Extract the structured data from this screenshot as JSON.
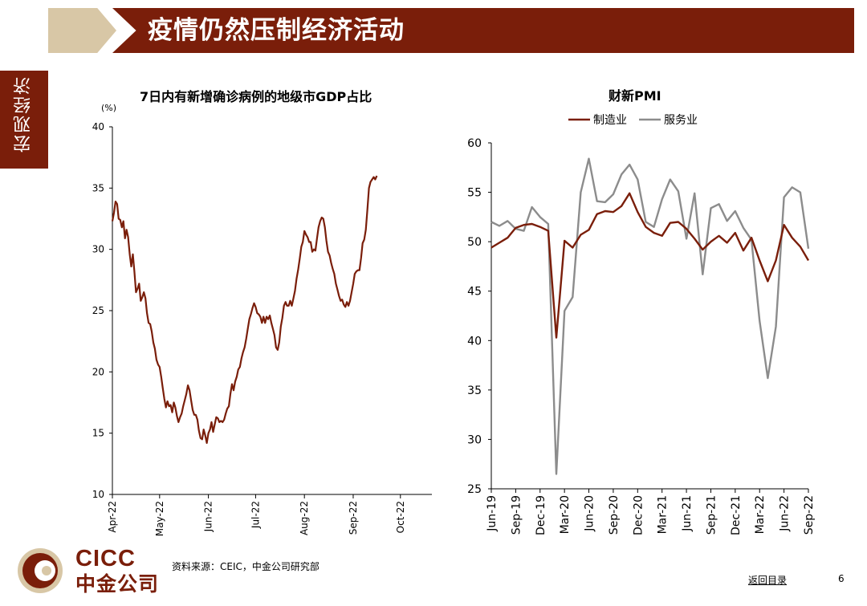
{
  "header": {
    "title": "疫情仍然压制经济活动"
  },
  "side_tab": {
    "label": "宏观经济"
  },
  "footer": {
    "source": "资料来源：CEIC，中金公司研究部",
    "toc_link": "返回目录",
    "page_number": "6",
    "logo_en": "CICC",
    "logo_cn": "中金公司"
  },
  "colors": {
    "brand": "#7a1e0a",
    "accent_tan": "#d8c7a6",
    "line_brown": "#7a1e0a",
    "line_gray": "#8c8c8c"
  },
  "chart_data": [
    {
      "type": "line",
      "title": "7日内有新增确诊病例的地级市GDP占比",
      "ylabel": "(%)",
      "ylim": [
        10,
        40
      ],
      "yticks": [
        "40",
        "35",
        "30",
        "25",
        "20",
        "15",
        "10"
      ],
      "xlim": [
        "2022-04-01",
        "2022-10-21"
      ],
      "xticks": [
        {
          "label": "Apr-22",
          "date": "2022-04-01"
        },
        {
          "label": "May-22",
          "date": "2022-05-01"
        },
        {
          "label": "Jun-22",
          "date": "2022-06-01"
        },
        {
          "label": "Jul-22",
          "date": "2022-07-01"
        },
        {
          "label": "Aug-22",
          "date": "2022-08-01"
        },
        {
          "label": "Sep-22",
          "date": "2022-09-01"
        },
        {
          "label": "Oct-22",
          "date": "2022-10-01"
        }
      ],
      "grid": false,
      "series": [
        {
          "color": "#7a1e0a",
          "points": [
            [
              "2022-04-01",
              32.3
            ],
            [
              "2022-04-02",
              33.0
            ],
            [
              "2022-04-03",
              33.9
            ],
            [
              "2022-04-04",
              33.7
            ],
            [
              "2022-04-05",
              32.5
            ],
            [
              "2022-04-06",
              32.4
            ],
            [
              "2022-04-07",
              31.8
            ],
            [
              "2022-04-08",
              32.3
            ],
            [
              "2022-04-09",
              30.9
            ],
            [
              "2022-04-10",
              31.6
            ],
            [
              "2022-04-11",
              31.0
            ],
            [
              "2022-04-12",
              29.6
            ],
            [
              "2022-04-13",
              28.6
            ],
            [
              "2022-04-14",
              29.6
            ],
            [
              "2022-04-15",
              28.2
            ],
            [
              "2022-04-16",
              26.5
            ],
            [
              "2022-04-17",
              26.8
            ],
            [
              "2022-04-18",
              27.2
            ],
            [
              "2022-04-19",
              25.8
            ],
            [
              "2022-04-20",
              26.1
            ],
            [
              "2022-04-21",
              26.5
            ],
            [
              "2022-04-22",
              26.0
            ],
            [
              "2022-04-23",
              24.8
            ],
            [
              "2022-04-24",
              24.0
            ],
            [
              "2022-04-25",
              23.9
            ],
            [
              "2022-04-26",
              23.3
            ],
            [
              "2022-04-27",
              22.4
            ],
            [
              "2022-04-28",
              21.9
            ],
            [
              "2022-04-29",
              21.0
            ],
            [
              "2022-04-30",
              20.6
            ],
            [
              "2022-05-01",
              20.4
            ],
            [
              "2022-05-02",
              19.6
            ],
            [
              "2022-05-03",
              18.7
            ],
            [
              "2022-05-04",
              17.8
            ],
            [
              "2022-05-05",
              17.1
            ],
            [
              "2022-05-06",
              17.6
            ],
            [
              "2022-05-07",
              17.2
            ],
            [
              "2022-05-08",
              17.3
            ],
            [
              "2022-05-09",
              16.7
            ],
            [
              "2022-05-10",
              17.5
            ],
            [
              "2022-05-11",
              17.1
            ],
            [
              "2022-05-12",
              16.4
            ],
            [
              "2022-05-13",
              15.9
            ],
            [
              "2022-05-14",
              16.3
            ],
            [
              "2022-05-15",
              16.6
            ],
            [
              "2022-05-16",
              17.2
            ],
            [
              "2022-05-17",
              17.7
            ],
            [
              "2022-05-18",
              18.2
            ],
            [
              "2022-05-19",
              18.9
            ],
            [
              "2022-05-20",
              18.5
            ],
            [
              "2022-05-21",
              17.7
            ],
            [
              "2022-05-22",
              16.9
            ],
            [
              "2022-05-23",
              16.5
            ],
            [
              "2022-05-24",
              16.5
            ],
            [
              "2022-05-25",
              16.1
            ],
            [
              "2022-05-26",
              15.2
            ],
            [
              "2022-05-27",
              14.6
            ],
            [
              "2022-05-28",
              14.5
            ],
            [
              "2022-05-29",
              15.3
            ],
            [
              "2022-05-30",
              14.8
            ],
            [
              "2022-05-31",
              14.2
            ],
            [
              "2022-06-01",
              15.0
            ],
            [
              "2022-06-02",
              15.3
            ],
            [
              "2022-06-03",
              15.9
            ],
            [
              "2022-06-04",
              15.1
            ],
            [
              "2022-06-05",
              15.7
            ],
            [
              "2022-06-06",
              16.3
            ],
            [
              "2022-06-07",
              16.2
            ],
            [
              "2022-06-08",
              15.9
            ],
            [
              "2022-06-09",
              16.0
            ],
            [
              "2022-06-10",
              15.9
            ],
            [
              "2022-06-11",
              16.1
            ],
            [
              "2022-06-12",
              16.6
            ],
            [
              "2022-06-13",
              17.0
            ],
            [
              "2022-06-14",
              17.2
            ],
            [
              "2022-06-15",
              18.2
            ],
            [
              "2022-06-16",
              19.0
            ],
            [
              "2022-06-17",
              18.5
            ],
            [
              "2022-06-18",
              19.2
            ],
            [
              "2022-06-19",
              19.6
            ],
            [
              "2022-06-20",
              20.2
            ],
            [
              "2022-06-21",
              20.4
            ],
            [
              "2022-06-22",
              21.1
            ],
            [
              "2022-06-23",
              21.6
            ],
            [
              "2022-06-24",
              22.0
            ],
            [
              "2022-06-25",
              22.7
            ],
            [
              "2022-06-26",
              23.5
            ],
            [
              "2022-06-27",
              24.3
            ],
            [
              "2022-06-28",
              24.7
            ],
            [
              "2022-06-29",
              25.2
            ],
            [
              "2022-06-30",
              25.6
            ],
            [
              "2022-07-01",
              25.3
            ],
            [
              "2022-07-02",
              24.8
            ],
            [
              "2022-07-03",
              24.7
            ],
            [
              "2022-07-04",
              24.5
            ],
            [
              "2022-07-05",
              24.0
            ],
            [
              "2022-07-06",
              24.5
            ],
            [
              "2022-07-07",
              24.0
            ],
            [
              "2022-07-08",
              24.5
            ],
            [
              "2022-07-09",
              24.3
            ],
            [
              "2022-07-10",
              24.6
            ],
            [
              "2022-07-11",
              24.0
            ],
            [
              "2022-07-12",
              23.5
            ],
            [
              "2022-07-13",
              23.0
            ],
            [
              "2022-07-14",
              22.0
            ],
            [
              "2022-07-15",
              21.8
            ],
            [
              "2022-07-16",
              22.4
            ],
            [
              "2022-07-17",
              23.7
            ],
            [
              "2022-07-18",
              24.4
            ],
            [
              "2022-07-19",
              25.4
            ],
            [
              "2022-07-20",
              25.7
            ],
            [
              "2022-07-21",
              25.4
            ],
            [
              "2022-07-22",
              25.4
            ],
            [
              "2022-07-23",
              25.8
            ],
            [
              "2022-07-24",
              25.4
            ],
            [
              "2022-07-25",
              26.0
            ],
            [
              "2022-07-26",
              26.6
            ],
            [
              "2022-07-27",
              27.6
            ],
            [
              "2022-07-28",
              28.3
            ],
            [
              "2022-07-29",
              29.2
            ],
            [
              "2022-07-30",
              30.2
            ],
            [
              "2022-07-31",
              30.6
            ],
            [
              "2022-08-01",
              31.5
            ],
            [
              "2022-08-02",
              31.2
            ],
            [
              "2022-08-03",
              31.0
            ],
            [
              "2022-08-04",
              30.6
            ],
            [
              "2022-08-05",
              30.6
            ],
            [
              "2022-08-06",
              29.8
            ],
            [
              "2022-08-07",
              30.0
            ],
            [
              "2022-08-08",
              29.9
            ],
            [
              "2022-08-09",
              30.9
            ],
            [
              "2022-08-10",
              31.8
            ],
            [
              "2022-08-11",
              32.3
            ],
            [
              "2022-08-12",
              32.6
            ],
            [
              "2022-08-13",
              32.5
            ],
            [
              "2022-08-14",
              31.8
            ],
            [
              "2022-08-15",
              30.7
            ],
            [
              "2022-08-16",
              29.8
            ],
            [
              "2022-08-17",
              29.5
            ],
            [
              "2022-08-18",
              28.9
            ],
            [
              "2022-08-19",
              28.4
            ],
            [
              "2022-08-20",
              28.0
            ],
            [
              "2022-08-21",
              27.2
            ],
            [
              "2022-08-22",
              26.7
            ],
            [
              "2022-08-23",
              26.2
            ],
            [
              "2022-08-24",
              25.8
            ],
            [
              "2022-08-25",
              25.9
            ],
            [
              "2022-08-26",
              25.5
            ],
            [
              "2022-08-27",
              25.3
            ],
            [
              "2022-08-28",
              25.7
            ],
            [
              "2022-08-29",
              25.4
            ],
            [
              "2022-08-30",
              25.8
            ],
            [
              "2022-08-31",
              26.5
            ],
            [
              "2022-09-01",
              27.2
            ],
            [
              "2022-09-02",
              28.0
            ],
            [
              "2022-09-03",
              28.2
            ],
            [
              "2022-09-04",
              28.3
            ],
            [
              "2022-09-05",
              28.3
            ],
            [
              "2022-09-06",
              29.3
            ],
            [
              "2022-09-07",
              30.5
            ],
            [
              "2022-09-08",
              30.8
            ],
            [
              "2022-09-09",
              31.6
            ],
            [
              "2022-09-10",
              33.2
            ],
            [
              "2022-09-11",
              35.0
            ],
            [
              "2022-09-12",
              35.5
            ],
            [
              "2022-09-13",
              35.7
            ],
            [
              "2022-09-14",
              35.9
            ],
            [
              "2022-09-15",
              35.7
            ],
            [
              "2022-09-16",
              36.0
            ]
          ]
        }
      ]
    },
    {
      "type": "line",
      "title": "财新PMI",
      "ylim": [
        25,
        60
      ],
      "yticks": [
        "60",
        "55",
        "50",
        "45",
        "40",
        "35",
        "30",
        "25"
      ],
      "xticks": [
        {
          "label": "Jun-19",
          "date": "2019-06"
        },
        {
          "label": "Sep-19",
          "date": "2019-09"
        },
        {
          "label": "Dec-19",
          "date": "2019-12"
        },
        {
          "label": "Mar-20",
          "date": "2020-03"
        },
        {
          "label": "Jun-20",
          "date": "2020-06"
        },
        {
          "label": "Sep-20",
          "date": "2020-09"
        },
        {
          "label": "Dec-20",
          "date": "2020-12"
        },
        {
          "label": "Mar-21",
          "date": "2021-03"
        },
        {
          "label": "Jun-21",
          "date": "2021-06"
        },
        {
          "label": "Sep-21",
          "date": "2021-09"
        },
        {
          "label": "Dec-21",
          "date": "2021-12"
        },
        {
          "label": "Mar-22",
          "date": "2022-03"
        },
        {
          "label": "Jun-22",
          "date": "2022-06"
        },
        {
          "label": "Sep-22",
          "date": "2022-09"
        }
      ],
      "legend_position": "top-center",
      "grid": false,
      "months": [
        "2019-06",
        "2019-07",
        "2019-08",
        "2019-09",
        "2019-10",
        "2019-11",
        "2019-12",
        "2020-01",
        "2020-02",
        "2020-03",
        "2020-04",
        "2020-05",
        "2020-06",
        "2020-07",
        "2020-08",
        "2020-09",
        "2020-10",
        "2020-11",
        "2020-12",
        "2021-01",
        "2021-02",
        "2021-03",
        "2021-04",
        "2021-05",
        "2021-06",
        "2021-07",
        "2021-08",
        "2021-09",
        "2021-10",
        "2021-11",
        "2021-12",
        "2022-01",
        "2022-02",
        "2022-03",
        "2022-04",
        "2022-05",
        "2022-06",
        "2022-07",
        "2022-08",
        "2022-09"
      ],
      "series": [
        {
          "name": "制造业",
          "color": "#7a1e0a",
          "values": [
            49.4,
            49.9,
            50.4,
            51.4,
            51.7,
            51.8,
            51.5,
            51.1,
            40.3,
            50.1,
            49.4,
            50.7,
            51.2,
            52.8,
            53.1,
            53.0,
            53.6,
            54.9,
            53.0,
            51.5,
            50.9,
            50.6,
            51.9,
            52.0,
            51.3,
            50.3,
            49.2,
            50.0,
            50.6,
            49.9,
            50.9,
            49.1,
            50.4,
            48.1,
            46.0,
            48.1,
            51.7,
            50.4,
            49.5,
            48.1
          ]
        },
        {
          "name": "服务业",
          "color": "#8c8c8c",
          "values": [
            52.0,
            51.6,
            52.1,
            51.3,
            51.1,
            53.5,
            52.5,
            51.8,
            26.5,
            43.0,
            44.4,
            55.0,
            58.4,
            54.1,
            54.0,
            54.8,
            56.8,
            57.8,
            56.3,
            52.0,
            51.5,
            54.3,
            56.3,
            55.1,
            50.3,
            54.9,
            46.7,
            53.4,
            53.8,
            52.1,
            53.1,
            51.4,
            50.2,
            42.0,
            36.2,
            41.4,
            54.5,
            55.5,
            55.0,
            49.3
          ]
        }
      ]
    }
  ]
}
